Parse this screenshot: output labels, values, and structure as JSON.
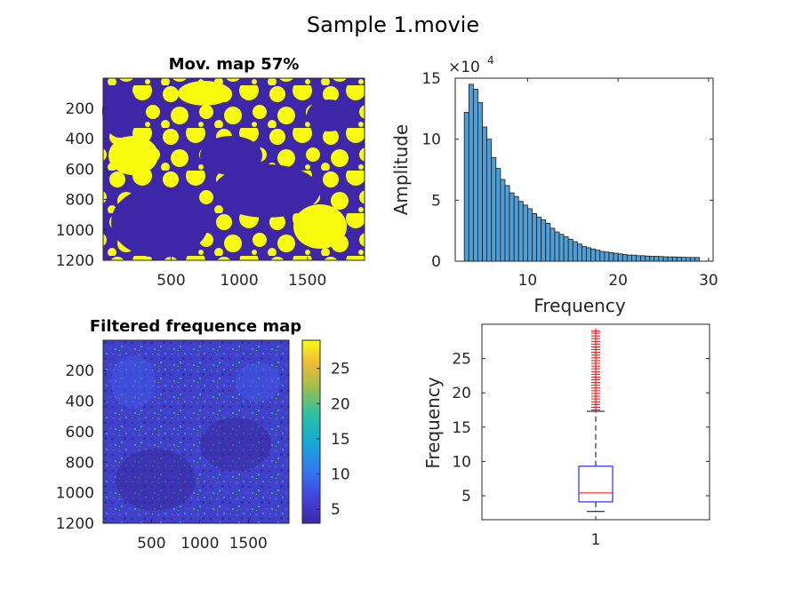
{
  "figure": {
    "suptitle": "Sample 1.movie"
  },
  "colors": {
    "parula_dark": "#3e26a8",
    "parula_yellow": "#f9fb0e",
    "hist_bar": "#4f9fd6",
    "box_blue": "#0000ff",
    "median_red": "#ff0000",
    "outlier_red": "#ff0000",
    "axis": "#262626"
  },
  "chart_data": [
    {
      "id": "mov-map",
      "type": "heatmap",
      "title": "Mov. map 57%",
      "xlabel": "",
      "ylabel": "",
      "x_ticks": [
        "500",
        "1000",
        "1500"
      ],
      "y_ticks": [
        "200",
        "400",
        "600",
        "800",
        "1000",
        "1200"
      ],
      "xlim": [
        1,
        1920
      ],
      "ylim": [
        1,
        1200
      ],
      "moving_fraction_percent": 57,
      "colors": [
        "#3e26a8",
        "#f9fb0e"
      ]
    },
    {
      "id": "histogram",
      "type": "bar",
      "title": "",
      "xlabel": "Frequency",
      "ylabel": "Amplitude",
      "y_exponent": "×10",
      "y_exponent_power": "4",
      "x_ticks": [
        "10",
        "20",
        "30"
      ],
      "y_ticks": [
        "0",
        "5",
        "10",
        "15"
      ],
      "xlim": [
        2,
        30.5
      ],
      "ylim": [
        0,
        15
      ],
      "bin_edges_start": 3,
      "bin_width": 0.5,
      "values": [
        12.2,
        14.5,
        14.1,
        13.0,
        11.0,
        10.0,
        8.5,
        7.6,
        6.7,
        6.2,
        5.6,
        5.3,
        4.9,
        4.6,
        4.3,
        3.9,
        3.6,
        3.4,
        3.1,
        2.7,
        2.4,
        2.2,
        2.0,
        1.8,
        1.6,
        1.4,
        1.2,
        1.1,
        1.0,
        0.9,
        0.8,
        0.75,
        0.7,
        0.65,
        0.6,
        0.55,
        0.5,
        0.5,
        0.45,
        0.45,
        0.42,
        0.4,
        0.4,
        0.38,
        0.36,
        0.35,
        0.35,
        0.33,
        0.32,
        0.31,
        0.3,
        0.3
      ],
      "grid": false
    },
    {
      "id": "filtered-map",
      "type": "heatmap",
      "title": "Filtered frequence map",
      "xlabel": "",
      "ylabel": "",
      "x_ticks": [
        "500",
        "1000",
        "1500"
      ],
      "y_ticks": [
        "200",
        "400",
        "600",
        "800",
        "1000",
        "1200"
      ],
      "xlim": [
        1,
        1920
      ],
      "ylim": [
        1,
        1200
      ],
      "colorbar_ticks": [
        "5",
        "10",
        "15",
        "20",
        "25"
      ],
      "clim": [
        3,
        29
      ]
    },
    {
      "id": "boxplot",
      "type": "box",
      "title": "",
      "xlabel": "",
      "ylabel": "Frequency",
      "x_ticks": [
        "1"
      ],
      "y_ticks": [
        "5",
        "10",
        "15",
        "20",
        "25"
      ],
      "ylim": [
        1.5,
        30
      ],
      "whisker_low": 2.7,
      "q1": 4.1,
      "median": 5.4,
      "q3": 9.3,
      "whisker_high": 17.3,
      "outliers": [
        17.5,
        17.9,
        18.3,
        18.7,
        19.1,
        19.5,
        19.9,
        20.3,
        20.7,
        21.1,
        21.5,
        21.9,
        22.3,
        22.7,
        23.1,
        23.5,
        23.9,
        24.3,
        24.7,
        25.1,
        25.5,
        25.9,
        26.3,
        26.7,
        27.1,
        27.5,
        27.9,
        28.3,
        28.7,
        29.0
      ]
    }
  ]
}
